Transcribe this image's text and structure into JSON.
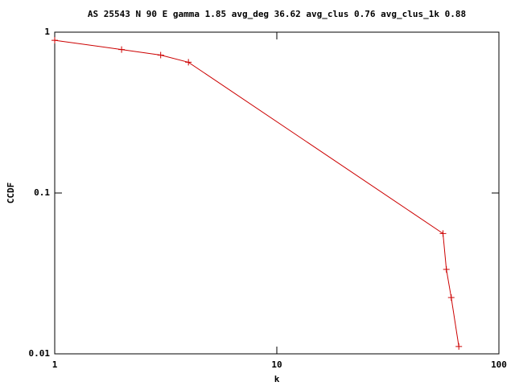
{
  "chart_data": {
    "type": "line",
    "title": "AS 25543 N 90 E gamma 1.85 avg_deg 36.62 avg_clus 0.76 avg_clus_1k 0.88",
    "xlabel": "k",
    "ylabel": "CCDF",
    "x": [
      1,
      2,
      3,
      4,
      56,
      58,
      61,
      66
    ],
    "series": [
      {
        "color": "#cc0000",
        "values": [
          0.89,
          0.78,
          0.72,
          0.65,
          0.056,
          0.0335,
          0.0224,
          0.0111
        ]
      }
    ],
    "xlim": [
      1,
      100
    ],
    "ylim": [
      0.01,
      1
    ],
    "xticks": [
      1,
      10,
      100
    ],
    "yticks": [
      0.01,
      0.1,
      1
    ],
    "xscale": "log",
    "yscale": "log"
  }
}
